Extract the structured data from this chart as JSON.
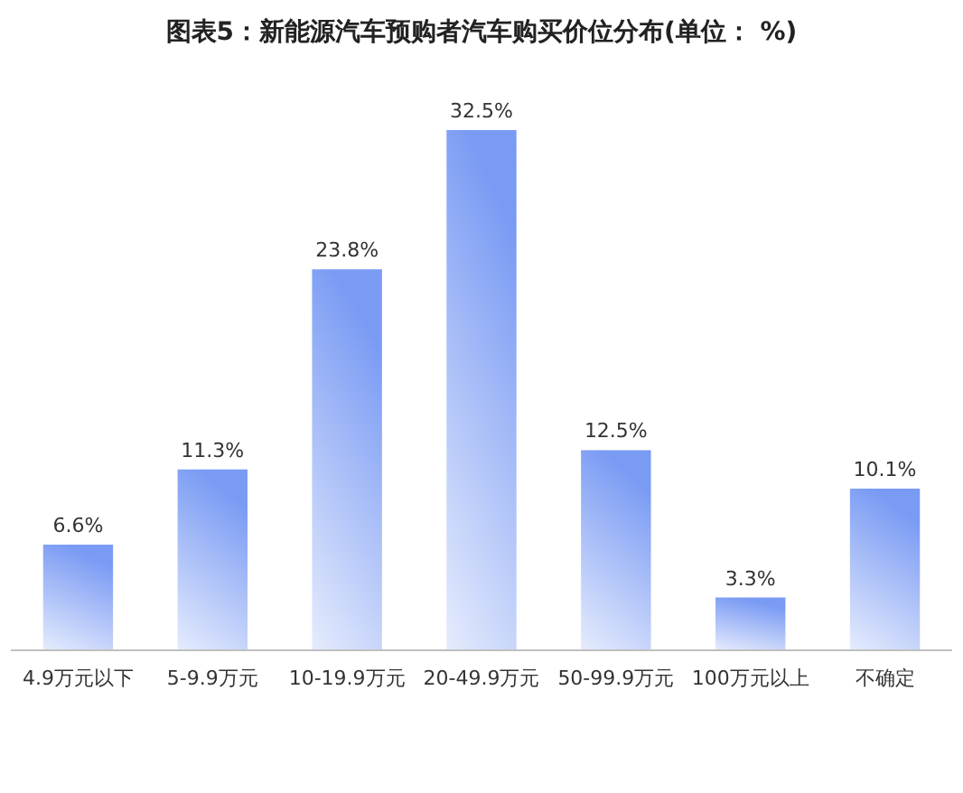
{
  "chart_data": {
    "type": "bar",
    "title": "图表5：新能源汽车预购者汽车购买价位分布(单位： %)",
    "categories": [
      "4.9万元以下",
      "5-9.9万元",
      "10-19.9万元",
      "20-49.9万元",
      "50-99.9万元",
      "100万元以上",
      "不确定"
    ],
    "values": [
      6.6,
      11.3,
      23.8,
      32.5,
      12.5,
      3.3,
      10.1
    ],
    "value_labels": [
      "6.6%",
      "11.3%",
      "23.8%",
      "32.5%",
      "12.5%",
      "3.3%",
      "10.1%"
    ],
    "color": "#7a9bf4"
  }
}
